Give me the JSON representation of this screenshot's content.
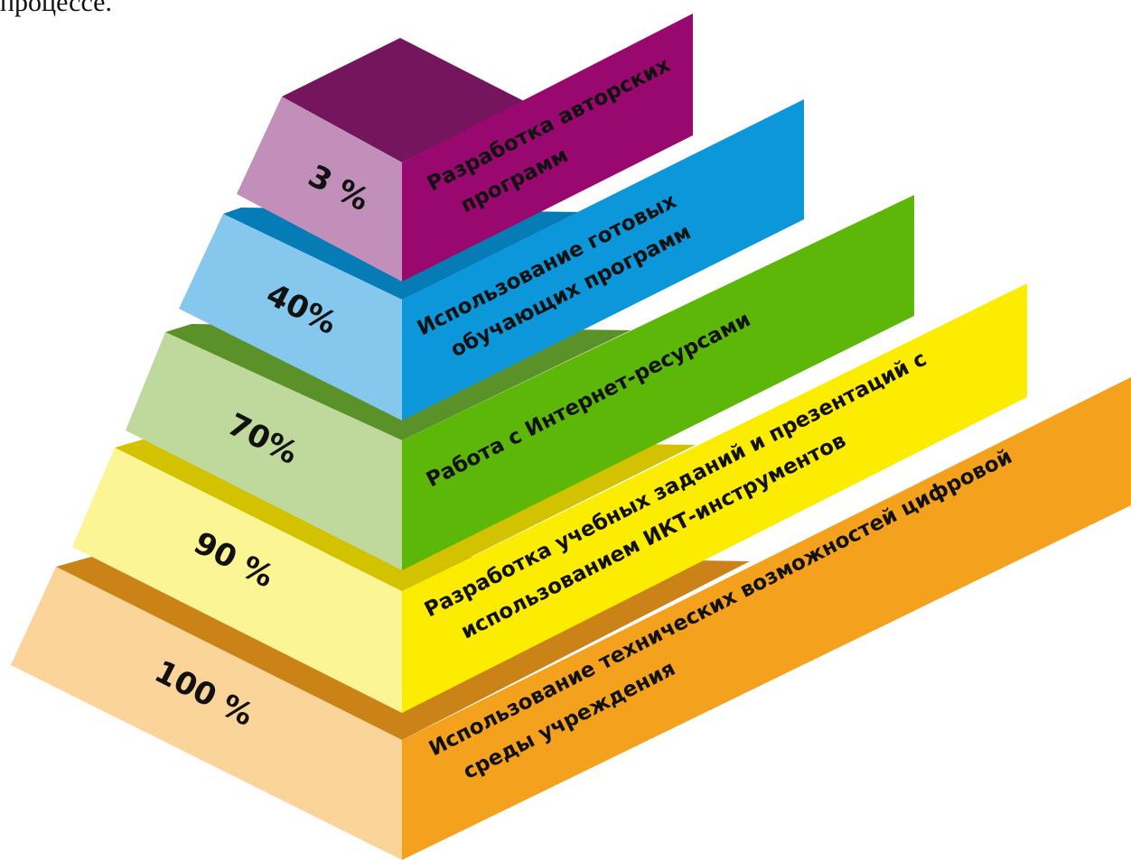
{
  "top_caption": "процессе.",
  "tiers": [
    {
      "percent": "3 %",
      "label_lines": [
        "Разработка авторских",
        "программ"
      ],
      "colors": {
        "front": "#C28FBA",
        "top": "#75155E",
        "band": "#98086F"
      }
    },
    {
      "percent": "40%",
      "label_lines": [
        "Использование готовых",
        "обучающих программ"
      ],
      "colors": {
        "front": "#86C7EE",
        "top": "#067CB7",
        "band": "#0C97DA"
      }
    },
    {
      "percent": "70%",
      "label_lines": [
        "Работа с Интернет-ресурсами"
      ],
      "colors": {
        "front": "#BFD99D",
        "top": "#5B9129",
        "band": "#5CB708"
      }
    },
    {
      "percent": "90 %",
      "label_lines": [
        "Разработка учебных заданий и презентаций с",
        "использованием ИКТ-инструментов"
      ],
      "colors": {
        "front": "#FBF596",
        "top": "#D2C200",
        "band": "#FCEC00"
      }
    },
    {
      "percent": "100 %",
      "label_lines": [
        "Использование технических возможностей цифровой",
        "среды учреждения"
      ],
      "colors": {
        "front": "#FBD49A",
        "top": "#CB8216",
        "band": "#F4A21E"
      }
    }
  ]
}
